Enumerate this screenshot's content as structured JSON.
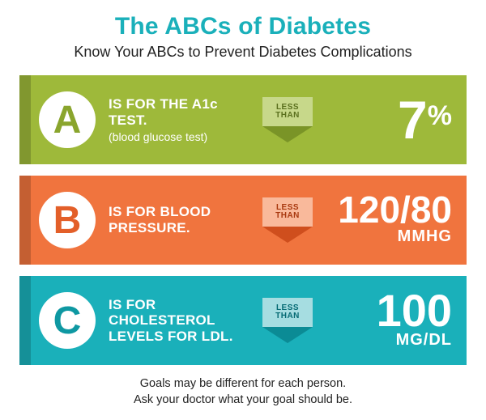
{
  "title": "The ABCs of Diabetes",
  "title_color": "#1ab0ba",
  "subtitle": "Know Your ABCs to Prevent Diabetes Complications",
  "arrow_label_top": "LESS",
  "arrow_label_bottom": "THAN",
  "rows": [
    {
      "letter": "A",
      "bg": "#9eb93a",
      "letter_color": "#8aa52d",
      "label": "IS FOR THE A1c TEST.",
      "sublabel": "(blood glucose test)",
      "arrow_body_bg": "#c7d88a",
      "arrow_tip_color": "#7a9427",
      "arrow_text_color": "#5a6f1d",
      "value": "7",
      "value_fontsize": 66,
      "unit": "%",
      "unit_inline": true
    },
    {
      "letter": "B",
      "bg": "#f0743e",
      "letter_color": "#e35f29",
      "label": "IS FOR BLOOD PRESSURE.",
      "sublabel": "",
      "arrow_body_bg": "#f9b99b",
      "arrow_tip_color": "#cf4e1d",
      "arrow_text_color": "#a8380f",
      "value": "120/80",
      "value_fontsize": 46,
      "unit": "MMHG",
      "unit_fontsize": 20
    },
    {
      "letter": "C",
      "bg": "#1ab0ba",
      "letter_color": "#0e98a2",
      "label": "IS FOR CHOLESTEROL LEVELS FOR LDL.",
      "sublabel": "",
      "arrow_body_bg": "#a6dde1",
      "arrow_tip_color": "#0b8b95",
      "arrow_text_color": "#056a73",
      "value": "100",
      "value_fontsize": 56,
      "unit": "MG/DL",
      "unit_fontsize": 20
    }
  ],
  "footer_line1": "Goals may be different for each person.",
  "footer_line2": "Ask your doctor what your goal should be."
}
